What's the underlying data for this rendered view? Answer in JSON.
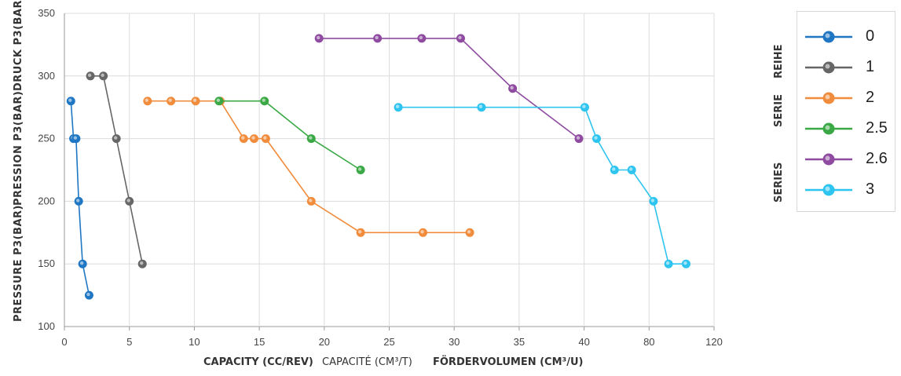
{
  "chart_data": {
    "type": "line",
    "y_titles": [
      "PRESSURE P3(BAR)",
      "PRESSION P3(BAR)",
      "DRUCK P3(BAR)"
    ],
    "x_titles": [
      "CAPACITY (CC/REV)",
      "CAPACITÉ (CM³/T)",
      "FÖRDERVOLUMEN (CM³/U)"
    ],
    "legend_titles": [
      "SERIES",
      "SERIE",
      "REIHE"
    ],
    "ylim": [
      100,
      350
    ],
    "y_ticks": [
      100,
      150,
      200,
      250,
      300,
      350
    ],
    "x_ticks": [
      "0",
      "5",
      "10",
      "15",
      "20",
      "25",
      "30",
      "35",
      "40",
      "80",
      "120"
    ],
    "x_scale": "piecewise linear: 0-40 by 5, then 40-120 by 40",
    "grid": true,
    "legend_position": "right",
    "series": [
      {
        "name": "0",
        "color": "#1f77c4",
        "points": [
          [
            0.5,
            280
          ],
          [
            0.7,
            250
          ],
          [
            0.9,
            250
          ],
          [
            1.1,
            200
          ],
          [
            1.4,
            150
          ],
          [
            1.9,
            125
          ]
        ]
      },
      {
        "name": "1",
        "color": "#666666",
        "points": [
          [
            2.0,
            300
          ],
          [
            3.0,
            300
          ],
          [
            4.0,
            250
          ],
          [
            5.0,
            200
          ],
          [
            6.0,
            150
          ]
        ]
      },
      {
        "name": "2",
        "color": "#f08c3c",
        "points": [
          [
            6.4,
            280
          ],
          [
            8.2,
            280
          ],
          [
            10.1,
            280
          ],
          [
            12.0,
            280
          ],
          [
            13.8,
            250
          ],
          [
            14.6,
            250
          ],
          [
            15.5,
            250
          ],
          [
            19.0,
            200
          ],
          [
            22.8,
            175
          ],
          [
            27.6,
            175
          ],
          [
            31.2,
            175
          ]
        ]
      },
      {
        "name": "2.5",
        "color": "#3aa845",
        "points": [
          [
            11.9,
            280
          ],
          [
            15.4,
            280
          ],
          [
            19.0,
            250
          ],
          [
            22.8,
            225
          ]
        ]
      },
      {
        "name": "2.6",
        "color": "#8e4ba0",
        "points": [
          [
            19.6,
            330
          ],
          [
            24.1,
            330
          ],
          [
            27.5,
            330
          ],
          [
            30.5,
            330
          ],
          [
            34.5,
            290
          ],
          [
            39.6,
            250
          ]
        ]
      },
      {
        "name": "3",
        "color": "#2ec4f0",
        "points": [
          [
            25.7,
            275
          ],
          [
            32.1,
            275
          ],
          [
            40.4,
            275
          ],
          [
            47.7,
            250
          ],
          [
            58.7,
            225
          ],
          [
            69.3,
            225
          ],
          [
            82.7,
            200
          ],
          [
            92.0,
            150
          ],
          [
            102.8,
            150
          ]
        ]
      }
    ]
  }
}
